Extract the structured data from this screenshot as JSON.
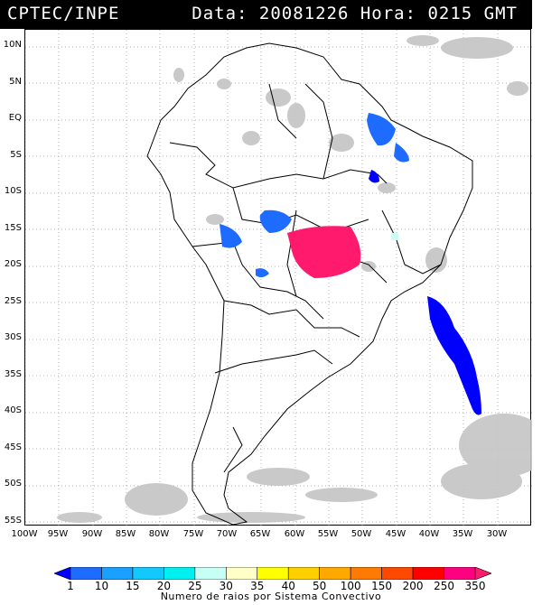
{
  "header": {
    "org": "CPTEC/INPE",
    "stamp": "Data: 20081226 Hora: 0215 GMT"
  },
  "map": {
    "lat_labels": [
      "10N",
      "5N",
      "EQ",
      "5S",
      "10S",
      "15S",
      "20S",
      "25S",
      "30S",
      "35S",
      "40S",
      "45S",
      "50S",
      "55S"
    ],
    "lon_labels": [
      "100W",
      "95W",
      "90W",
      "85W",
      "80W",
      "75W",
      "70W",
      "65W",
      "60W",
      "55W",
      "50W",
      "45W",
      "40W",
      "35W",
      "30W"
    ],
    "colors": {
      "cloud": "#c4c4c4",
      "boundary": "#000000",
      "grid": "#9a9a9a"
    }
  },
  "colorbar": {
    "labels": [
      "1",
      "10",
      "15",
      "20",
      "25",
      "30",
      "35",
      "40",
      "50",
      "100",
      "150",
      "200",
      "250",
      "350"
    ],
    "colors": [
      "#0000ff",
      "#1e6bff",
      "#1aa0ff",
      "#12c8ff",
      "#00f0f0",
      "#c8fff5",
      "#ffffc8",
      "#ffff00",
      "#ffd000",
      "#ffa800",
      "#ff7a00",
      "#ff4800",
      "#ff0000",
      "#ff0080",
      "#ff1a6e"
    ],
    "caption": "Numero de raios por Sistema Convectivo"
  }
}
